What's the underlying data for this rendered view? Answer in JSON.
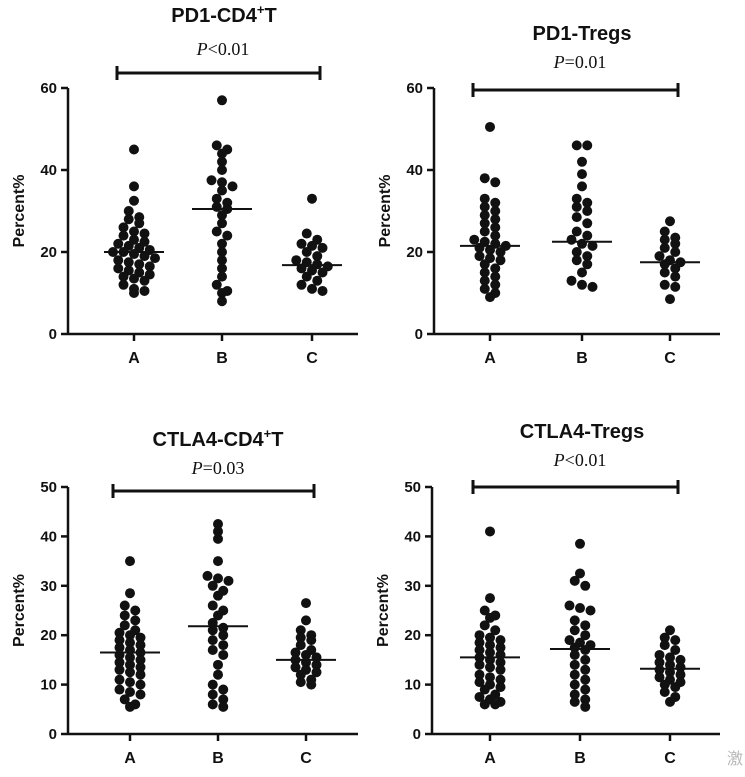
{
  "chart_data": [
    {
      "type": "scatter",
      "title": "PD1-CD4",
      "title_sup": "+",
      "title_suffix": "T",
      "ylabel": "Percent%",
      "ylim": [
        0,
        60
      ],
      "yticks": [
        0,
        20,
        40,
        60
      ],
      "categories": [
        "A",
        "B",
        "C"
      ],
      "pvalue": {
        "prefix": "P",
        "text": "<0.01",
        "from": "A",
        "to": "C"
      },
      "medians": [
        20.0,
        30.5,
        16.8
      ],
      "points": [
        [
          45,
          36,
          32.5,
          30,
          28.5,
          28,
          27,
          26,
          25,
          24.5,
          24,
          23,
          22.5,
          22,
          21.5,
          21,
          20.5,
          20,
          20,
          19.5,
          19,
          18.5,
          18,
          17.5,
          17,
          16.5,
          16,
          15.5,
          15,
          14.5,
          14,
          13.5,
          13,
          12,
          11,
          10.5,
          10
        ],
        [
          57,
          46,
          45,
          44,
          42,
          40,
          37.5,
          37,
          36,
          35,
          33,
          32,
          31,
          30.5,
          29,
          27,
          25,
          24,
          22,
          20,
          18,
          16,
          14,
          12,
          10.5,
          10,
          8
        ],
        [
          33,
          24.5,
          23,
          22,
          21.5,
          21,
          20,
          19,
          18,
          17.5,
          17,
          16.5,
          16,
          15.5,
          15,
          14,
          13,
          12,
          11,
          10.5
        ]
      ]
    },
    {
      "type": "scatter",
      "title": "PD1-Tregs",
      "ylabel": "Percent%",
      "ylim": [
        0,
        60
      ],
      "yticks": [
        0,
        20,
        40,
        60
      ],
      "categories": [
        "A",
        "B",
        "C"
      ],
      "pvalue": {
        "prefix": "P",
        "text": "=0.01",
        "from": "A",
        "to": "C"
      },
      "medians": [
        21.5,
        22.5,
        17.5
      ],
      "points": [
        [
          50.5,
          38,
          37,
          33,
          32,
          31,
          30,
          29,
          28,
          27,
          26,
          25,
          24,
          23,
          22.5,
          22,
          21.5,
          21,
          20.5,
          20,
          19,
          18.5,
          18,
          17,
          16,
          15,
          14,
          13,
          12,
          11,
          10,
          9
        ],
        [
          46,
          46,
          42,
          39,
          36,
          33,
          32,
          31,
          30,
          28.5,
          27,
          25,
          24,
          23,
          22,
          21.5,
          20,
          19,
          18,
          17,
          15,
          13,
          12,
          11.5
        ],
        [
          27.5,
          25,
          23.5,
          23,
          22,
          21,
          20,
          19,
          18,
          17.5,
          17,
          16,
          15,
          14,
          12,
          11.5,
          8.5
        ]
      ]
    },
    {
      "type": "scatter",
      "title": "CTLA4-CD4",
      "title_sup": "+",
      "title_suffix": "T",
      "ylabel": "Percent%",
      "ylim": [
        0,
        50
      ],
      "yticks": [
        0,
        10,
        20,
        30,
        40,
        50
      ],
      "categories": [
        "A",
        "B",
        "C"
      ],
      "pvalue": {
        "prefix": "P",
        "text": "=0.03",
        "from": "A",
        "to": "C"
      },
      "medians": [
        16.5,
        21.8,
        15.0
      ],
      "points": [
        [
          35,
          28.5,
          26,
          25,
          24,
          23,
          22,
          21,
          20.5,
          20,
          19.5,
          19,
          18.5,
          18,
          17.5,
          17,
          16.5,
          16,
          15.5,
          15,
          14.5,
          14,
          13.5,
          13,
          12.5,
          12,
          11,
          10.5,
          10,
          9,
          8.5,
          8,
          7,
          6,
          5.5
        ],
        [
          42.5,
          41,
          39.5,
          35,
          32,
          31.5,
          31,
          30,
          29,
          28,
          26,
          25,
          24,
          22.5,
          21.5,
          21,
          20,
          19,
          18,
          17,
          16,
          14,
          12,
          10,
          9,
          8,
          7,
          6,
          5.5
        ],
        [
          26.5,
          23,
          21,
          20,
          19.5,
          19,
          18,
          17,
          16.5,
          16,
          15.5,
          15,
          14.5,
          14,
          13.5,
          13,
          12.5,
          12,
          11,
          10.5,
          10
        ]
      ]
    },
    {
      "type": "scatter",
      "title": "CTLA4-Tregs",
      "ylabel": "Percent%",
      "ylim": [
        0,
        50
      ],
      "yticks": [
        0,
        10,
        20,
        30,
        40,
        50
      ],
      "categories": [
        "A",
        "B",
        "C"
      ],
      "pvalue": {
        "prefix": "P",
        "text": "<0.01",
        "from": "A",
        "to": "C"
      },
      "medians": [
        15.5,
        17.2,
        13.2
      ],
      "points": [
        [
          41,
          27.5,
          25,
          24,
          23.5,
          22,
          21,
          20,
          19.5,
          19,
          18.5,
          18,
          17.5,
          17,
          16.5,
          16,
          15.5,
          15,
          14.5,
          14,
          13.5,
          13,
          12,
          11.5,
          11,
          10.5,
          10,
          9.5,
          9,
          8,
          7.5,
          7,
          6.5,
          6,
          6
        ],
        [
          38.5,
          32.5,
          31,
          30,
          26,
          25.5,
          25,
          23,
          22,
          21,
          20,
          19,
          18.5,
          18,
          17.5,
          17,
          16,
          15,
          14,
          13,
          12,
          11,
          10,
          9,
          8,
          7,
          6.5,
          5.5
        ],
        [
          21,
          19.5,
          19,
          18,
          17,
          16,
          15.5,
          15,
          14.5,
          14,
          13.5,
          13,
          12.5,
          12,
          11.5,
          11,
          10.5,
          10,
          9.5,
          8.5,
          7.5,
          6.5
        ]
      ]
    }
  ],
  "watermark": "激"
}
